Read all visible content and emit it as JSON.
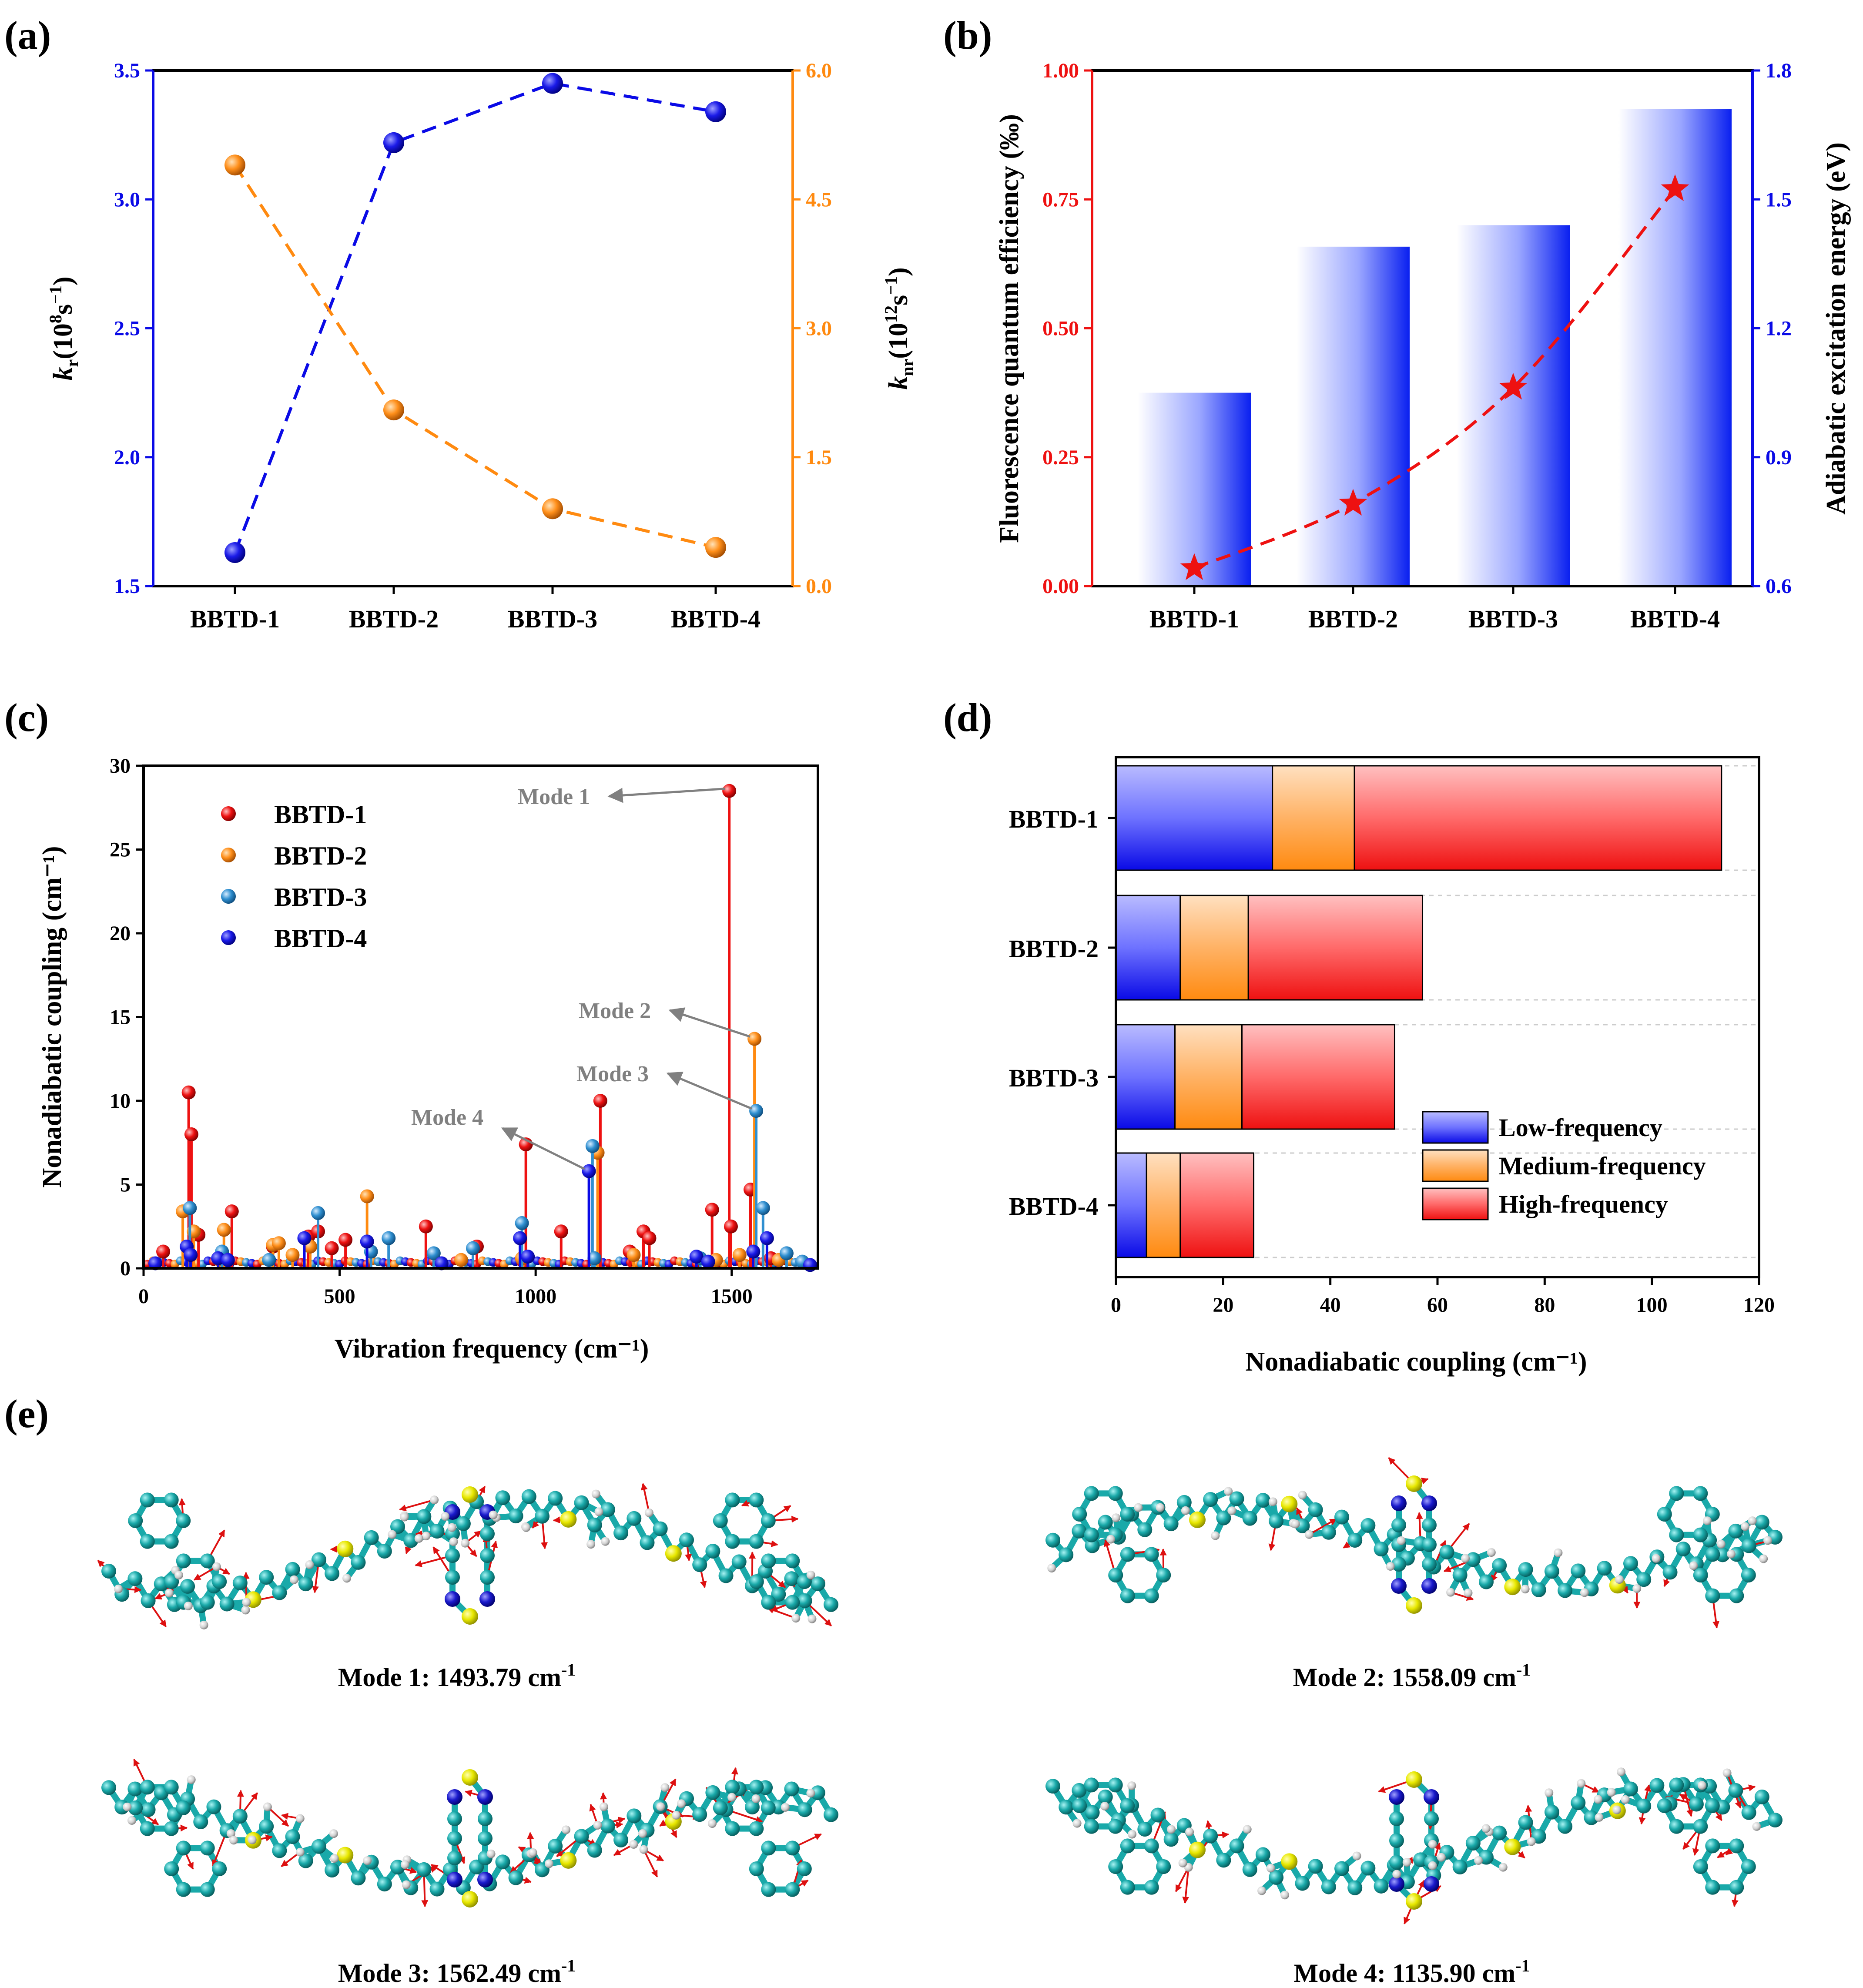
{
  "panel_labels": [
    "(a)",
    "(b)",
    "(c)",
    "(d)",
    "(e)"
  ],
  "colors": {
    "blue": "#0a0ae6",
    "orange": "#ff8a10",
    "red": "#ee1111",
    "skyblue": "#2f8fd0",
    "grey": "#808080"
  },
  "chart_data": [
    {
      "id": "a",
      "type": "line",
      "categories": [
        "BBTD-1",
        "BBTD-2",
        "BBTD-3",
        "BBTD-4"
      ],
      "ylabel_left": "k_r(10^8 s^-1)",
      "ylabel_left_parts": {
        "k": "k",
        "sub": "r",
        "open": "(10",
        "sup": "8",
        "unit": "s",
        "neg": "−1",
        "close": ")"
      },
      "ylabel_right": "k_nr(10^12 s^-1)",
      "ylabel_right_parts": {
        "k": "k",
        "sub": "nr",
        "open": "(10",
        "sup": "12",
        "unit": "s",
        "neg": "−1",
        "close": ")"
      },
      "ylim_left": [
        1.5,
        3.5
      ],
      "yticks_left": [
        "1.5",
        "2.0",
        "2.5",
        "3.0",
        "3.5"
      ],
      "ylim_right": [
        0.0,
        6.0
      ],
      "yticks_right": [
        "0.0",
        "1.5",
        "3.0",
        "4.5",
        "6.0"
      ],
      "series": [
        {
          "name": "k_r",
          "axis": "left",
          "color": "#0a0ae6",
          "values": [
            1.63,
            3.22,
            3.45,
            3.34
          ]
        },
        {
          "name": "k_nr",
          "axis": "right",
          "color": "#ff8a10",
          "values": [
            4.9,
            2.05,
            0.9,
            0.45
          ]
        }
      ]
    },
    {
      "id": "b",
      "type": "bar",
      "categories": [
        "BBTD-1",
        "BBTD-2",
        "BBTD-3",
        "BBTD-4"
      ],
      "ylabel_left": "Fluorescence quantum efficiency (‰)",
      "ylabel_right": "Adiabatic excitation energy (eV)",
      "ylim_left": [
        0.0,
        1.0
      ],
      "yticks_left": [
        "0.00",
        "0.25",
        "0.50",
        "0.75",
        "1.00"
      ],
      "ylim_right": [
        0.6,
        1.8
      ],
      "yticks_right": [
        "0.6",
        "0.9",
        "1.2",
        "1.5",
        "1.8"
      ],
      "bars_right_axis": [
        1.05,
        1.39,
        1.44,
        1.71
      ],
      "line_left_axis": [
        0.035,
        0.16,
        0.385,
        0.77
      ]
    },
    {
      "id": "c",
      "type": "scatter",
      "xlabel": "Vibration frequency (cm⁻¹)",
      "ylabel": "Nonadiabatic coupling (cm⁻¹)",
      "xlim": [
        0,
        1720
      ],
      "ylim": [
        0,
        30
      ],
      "xticks": [
        "0",
        "500",
        "1000",
        "1500"
      ],
      "yticks": [
        "0",
        "5",
        "10",
        "15",
        "20",
        "25",
        "30"
      ],
      "legend": [
        "BBTD-1",
        "BBTD-2",
        "BBTD-3",
        "BBTD-4"
      ],
      "annotations": [
        {
          "text": "Mode 1",
          "x": 1493.79,
          "y": 28.5
        },
        {
          "text": "Mode 2",
          "x": 1558.09,
          "y": 13.7
        },
        {
          "text": "Mode 3",
          "x": 1562.49,
          "y": 9.4
        },
        {
          "text": "Mode 4",
          "x": 1135.9,
          "y": 5.8
        }
      ],
      "series": [
        {
          "name": "BBTD-1",
          "color": "#ee1111",
          "points": [
            [
              50,
              1.0
            ],
            [
              115,
              10.5
            ],
            [
              122,
              8.0
            ],
            [
              140,
              2.0
            ],
            [
              225,
              3.4
            ],
            [
              330,
              1.3
            ],
            [
              420,
              1.9
            ],
            [
              445,
              2.2
            ],
            [
              480,
              1.2
            ],
            [
              515,
              1.7
            ],
            [
              720,
              2.5
            ],
            [
              850,
              1.3
            ],
            [
              975,
              7.4
            ],
            [
              1065,
              2.2
            ],
            [
              1165,
              10.0
            ],
            [
              1240,
              1.0
            ],
            [
              1275,
              2.2
            ],
            [
              1290,
              1.8
            ],
            [
              1450,
              3.5
            ],
            [
              1493.79,
              28.5
            ],
            [
              1498,
              2.5
            ],
            [
              1548,
              4.7
            ],
            [
              1600,
              0.6
            ]
          ]
        },
        {
          "name": "BBTD-2",
          "color": "#ff8a10",
          "points": [
            [
              100,
              3.4
            ],
            [
              128,
              2.2
            ],
            [
              205,
              2.3
            ],
            [
              330,
              1.4
            ],
            [
              345,
              1.5
            ],
            [
              380,
              0.8
            ],
            [
              425,
              1.3
            ],
            [
              570,
              4.3
            ],
            [
              810,
              0.5
            ],
            [
              965,
              0.6
            ],
            [
              1158,
              6.9
            ],
            [
              1250,
              0.8
            ],
            [
              1460,
              0.5
            ],
            [
              1520,
              0.8
            ],
            [
              1558.09,
              13.7
            ],
            [
              1620,
              0.5
            ]
          ]
        },
        {
          "name": "BBTD-3",
          "color": "#2f8fd0",
          "points": [
            [
              118,
              3.6
            ],
            [
              200,
              1.0
            ],
            [
              320,
              0.5
            ],
            [
              445,
              3.3
            ],
            [
              580,
              1.0
            ],
            [
              625,
              1.8
            ],
            [
              740,
              0.9
            ],
            [
              840,
              1.2
            ],
            [
              965,
              2.7
            ],
            [
              1145,
              7.3
            ],
            [
              1150,
              0.6
            ],
            [
              1420,
              0.6
            ],
            [
              1562.49,
              9.4
            ],
            [
              1580,
              3.6
            ],
            [
              1640,
              0.9
            ],
            [
              1680,
              0.4
            ]
          ]
        },
        {
          "name": "BBTD-4",
          "color": "#0a0ae6",
          "points": [
            [
              30,
              0.3
            ],
            [
              110,
              1.3
            ],
            [
              120,
              0.8
            ],
            [
              190,
              0.6
            ],
            [
              215,
              0.5
            ],
            [
              410,
              1.8
            ],
            [
              570,
              1.6
            ],
            [
              760,
              0.3
            ],
            [
              960,
              1.8
            ],
            [
              980,
              0.7
            ],
            [
              1135.9,
              5.8
            ],
            [
              1410,
              0.7
            ],
            [
              1440,
              0.4
            ],
            [
              1555,
              1.0
            ],
            [
              1590,
              1.8
            ],
            [
              1700,
              0.2
            ]
          ]
        }
      ]
    },
    {
      "id": "d",
      "type": "bar",
      "orientation": "horizontal-stacked",
      "categories": [
        "BBTD-1",
        "BBTD-2",
        "BBTD-3",
        "BBTD-4"
      ],
      "xlabel": "Nonadiabatic coupling (cm⁻¹)",
      "xlim": [
        0,
        120
      ],
      "xticks": [
        "0",
        "20",
        "40",
        "60",
        "80",
        "100",
        "120"
      ],
      "legend": [
        "Low-frequency",
        "Medium-frequency",
        "High-frequency"
      ],
      "series": [
        {
          "name": "Low-frequency",
          "color": "#0a0ae6",
          "values": [
            29.2,
            12.0,
            11.0,
            5.7
          ]
        },
        {
          "name": "Medium-frequency",
          "color": "#ff8a10",
          "values": [
            15.3,
            12.7,
            12.5,
            6.3
          ]
        },
        {
          "name": "High-frequency",
          "color": "#ee1111",
          "values": [
            68.5,
            32.5,
            28.5,
            13.7
          ]
        }
      ]
    }
  ],
  "panel_e": {
    "captions": [
      {
        "prefix": "Mode 1: 1493.79 cm",
        "sup": "-1"
      },
      {
        "prefix": "Mode 2: 1558.09 cm",
        "sup": "-1"
      },
      {
        "prefix": "Mode 3: 1562.49 cm",
        "sup": "-1"
      },
      {
        "prefix": "Mode 4: 1135.90 cm",
        "sup": "-1"
      }
    ],
    "atom_colors": {
      "carbon": "#19a9a9",
      "sulfur": "#e8e800",
      "nitrogen": "#1a1acc",
      "hydrogen": "#d9d9d9",
      "arrow": "#dd1010"
    }
  }
}
